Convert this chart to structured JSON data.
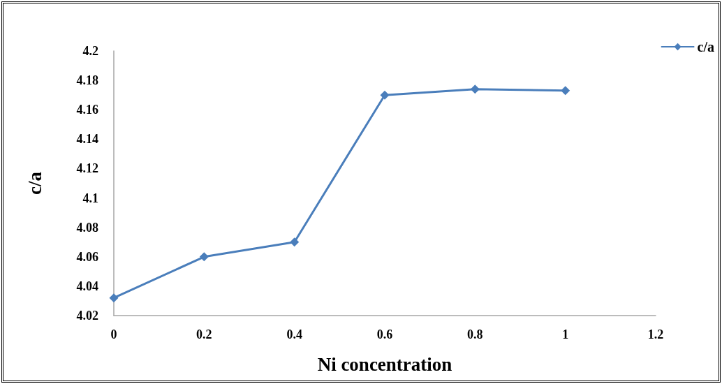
{
  "chart_data": {
    "type": "line",
    "xlabel": "Ni concentration",
    "ylabel": "c/a",
    "x": [
      0,
      0.2,
      0.4,
      0.6,
      0.8,
      1
    ],
    "series": [
      {
        "name": "c/a",
        "color": "#4a7ebb",
        "values": [
          4.032,
          4.06,
          4.07,
          4.17,
          4.174,
          4.173
        ]
      }
    ],
    "xlim": [
      0,
      1.2
    ],
    "xticks": [
      0,
      0.2,
      0.4,
      0.6,
      0.8,
      1,
      1.2
    ],
    "ylim": [
      4.02,
      4.2
    ],
    "yticks": [
      4.02,
      4.04,
      4.06,
      4.08,
      4.1,
      4.12,
      4.14,
      4.16,
      4.18,
      4.2
    ],
    "grid": false,
    "legend": "top right",
    "marker": "diamond",
    "line_style": "solid"
  }
}
